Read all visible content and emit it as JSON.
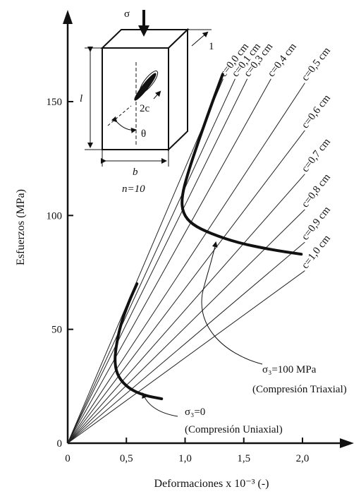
{
  "chart_data": {
    "type": "line",
    "xlabel": "Deformaciones x 10⁻³ (-)",
    "ylabel": "Esfuerzos (MPa)",
    "xlim": [
      0,
      2.3
    ],
    "ylim": [
      0,
      180
    ],
    "x_ticks": [
      "0",
      "0,5",
      "1,0",
      "1,5",
      "2,0"
    ],
    "x_tick_values": [
      0,
      0.5,
      1.0,
      1.5,
      2.0
    ],
    "y_ticks": [
      "0",
      "50",
      "100",
      "150"
    ],
    "y_tick_values": [
      0,
      50,
      100,
      150
    ],
    "grid": false,
    "legend": "none",
    "reference_lines": [
      {
        "label": "c=0,0 cm",
        "slope": 120.8
      },
      {
        "label": "c=0,1 cm",
        "slope": 112.2
      },
      {
        "label": "c=0,3 cm",
        "slope": 104.6
      },
      {
        "label": "c=0,4 cm",
        "slope": 92.4
      },
      {
        "label": "c=0,5 cm",
        "slope": 78.3
      },
      {
        "label": "c=0,6 cm",
        "slope": 68.0
      },
      {
        "label": "c=0,7 cm",
        "slope": 58.5
      },
      {
        "label": "c=0,8 cm",
        "slope": 50.8
      },
      {
        "label": "c=0,9 cm",
        "slope": 43.7
      },
      {
        "label": "c=1,0 cm",
        "slope": 37.5
      }
    ],
    "series": [
      {
        "name": "σ₃=0",
        "points": [
          [
            0.59,
            70
          ],
          [
            0.52,
            62
          ],
          [
            0.45,
            52
          ],
          [
            0.41,
            42
          ],
          [
            0.4,
            35
          ],
          [
            0.43,
            29
          ],
          [
            0.52,
            24
          ],
          [
            0.65,
            21
          ],
          [
            0.8,
            19.5
          ]
        ]
      },
      {
        "name": "σ₃=100 MPa",
        "points": [
          [
            1.32,
            162
          ],
          [
            1.22,
            148
          ],
          [
            1.11,
            132
          ],
          [
            1.02,
            118
          ],
          [
            0.97,
            108
          ],
          [
            0.98,
            101
          ],
          [
            1.06,
            96
          ],
          [
            1.22,
            92
          ],
          [
            1.45,
            88
          ],
          [
            1.73,
            85
          ],
          [
            1.99,
            83
          ]
        ]
      }
    ],
    "annotations": [
      {
        "text": "σ₃=100 MPa",
        "sub": "(Compresión Triaxial)"
      },
      {
        "text": "σ₃=0",
        "sub": "(Compresión Uniaxial)"
      }
    ],
    "inset": {
      "load": "σ",
      "depth": "1",
      "height": "l",
      "crack": "2c",
      "angle": "θ",
      "width": "b",
      "count": "n=10"
    }
  }
}
